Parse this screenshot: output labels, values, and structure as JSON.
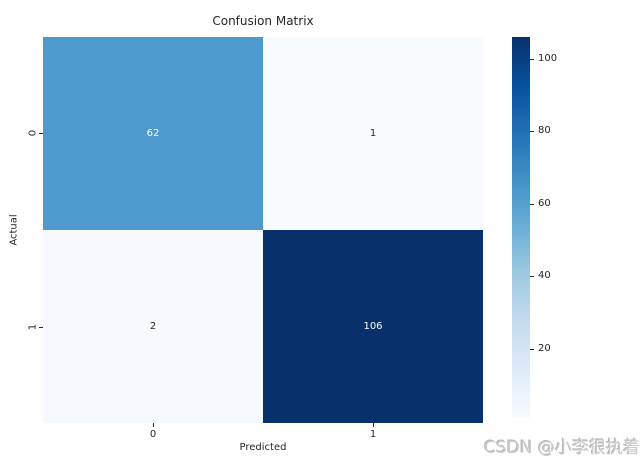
{
  "watermark": "CSDN @小李很执着",
  "chart_data": {
    "type": "heatmap",
    "title": "Confusion Matrix",
    "xlabel": "Predicted",
    "ylabel": "Actual",
    "x_ticklabels": [
      "0",
      "1"
    ],
    "y_ticklabels": [
      "0",
      "1"
    ],
    "matrix": {
      "rows": [
        [
          62,
          1
        ],
        [
          2,
          106
        ]
      ],
      "cell_colors": [
        [
          "#4f9acd",
          "#f7fbff"
        ],
        [
          "#f6fafe",
          "#08306b"
        ]
      ],
      "cell_text_colors": [
        [
          "#ffffff",
          "#262626"
        ],
        [
          "#262626",
          "#ffffff"
        ]
      ]
    },
    "colormap": "Blues",
    "vmin": 1,
    "vmax": 106,
    "colorbar": {
      "ticks": [
        20,
        40,
        60,
        80,
        100
      ],
      "gradient_top_to_bottom": [
        "#08306b",
        "#08519c",
        "#2171b5",
        "#4292c6",
        "#6baed6",
        "#9ecae1",
        "#c6dbef",
        "#deebf7",
        "#f7fbff"
      ]
    }
  }
}
